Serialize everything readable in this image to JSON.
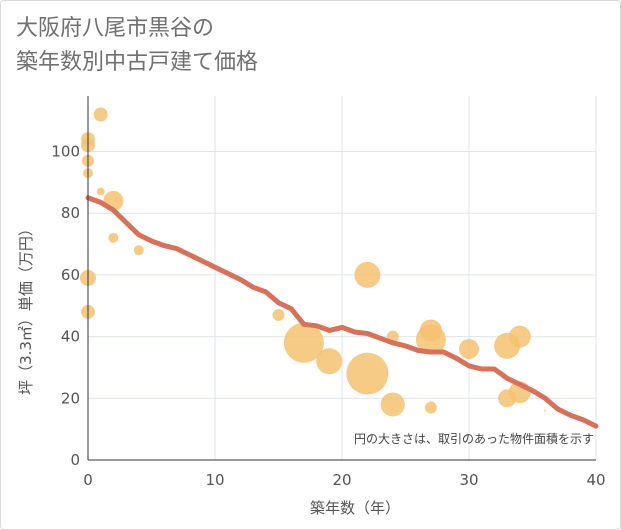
{
  "title_lines": [
    "大阪府八尾市黒谷の",
    "築年数別中古戸建て価格"
  ],
  "chart_data": {
    "type": "scatter",
    "title": "大阪府八尾市黒谷の築年数別中古戸建て価格",
    "xlabel": "築年数（年）",
    "ylabel": "坪（3.3㎡）単価（万円）",
    "xlim": [
      0,
      40
    ],
    "ylim": [
      0,
      118
    ],
    "xticks": [
      0,
      10,
      20,
      30,
      40
    ],
    "yticks": [
      0,
      20,
      40,
      60,
      80,
      100
    ],
    "grid": true,
    "note": "円の大きさは、取引のあった物件面積を示す",
    "colors": {
      "bubble": "#f5c270",
      "trend": "#d9705a",
      "grid": "#dfe4ea",
      "axis": "#333333"
    },
    "points": [
      {
        "x": 0,
        "y": 104,
        "size": 7
      },
      {
        "x": 0,
        "y": 102,
        "size": 7
      },
      {
        "x": 0,
        "y": 97,
        "size": 6
      },
      {
        "x": 0,
        "y": 93,
        "size": 5
      },
      {
        "x": 0,
        "y": 59,
        "size": 8
      },
      {
        "x": 0,
        "y": 48,
        "size": 7
      },
      {
        "x": 1,
        "y": 112,
        "size": 7
      },
      {
        "x": 1,
        "y": 87,
        "size": 4
      },
      {
        "x": 2,
        "y": 84,
        "size": 10
      },
      {
        "x": 2,
        "y": 72,
        "size": 5
      },
      {
        "x": 4,
        "y": 68,
        "size": 5
      },
      {
        "x": 15,
        "y": 47,
        "size": 6
      },
      {
        "x": 17,
        "y": 38,
        "size": 20
      },
      {
        "x": 19,
        "y": 32,
        "size": 13
      },
      {
        "x": 22,
        "y": 60,
        "size": 13
      },
      {
        "x": 22,
        "y": 28,
        "size": 21
      },
      {
        "x": 24,
        "y": 40,
        "size": 6
      },
      {
        "x": 24,
        "y": 18,
        "size": 12
      },
      {
        "x": 27,
        "y": 42,
        "size": 11
      },
      {
        "x": 27,
        "y": 39,
        "size": 15
      },
      {
        "x": 27,
        "y": 17,
        "size": 6
      },
      {
        "x": 30,
        "y": 36,
        "size": 10
      },
      {
        "x": 33,
        "y": 37,
        "size": 13
      },
      {
        "x": 33,
        "y": 20,
        "size": 9
      },
      {
        "x": 34,
        "y": 40,
        "size": 11
      },
      {
        "x": 34,
        "y": 22,
        "size": 11
      },
      {
        "x": 36,
        "y": 16,
        "size": 1
      }
    ],
    "trend": [
      [
        0,
        85
      ],
      [
        1,
        83.5
      ],
      [
        2,
        81
      ],
      [
        3,
        77
      ],
      [
        4,
        73
      ],
      [
        5,
        71
      ],
      [
        6,
        69.5
      ],
      [
        7,
        68.5
      ],
      [
        8,
        66.5
      ],
      [
        9,
        64.5
      ],
      [
        10,
        62.5
      ],
      [
        11,
        60.5
      ],
      [
        12,
        58.5
      ],
      [
        13,
        56
      ],
      [
        14,
        54.5
      ],
      [
        15,
        51
      ],
      [
        16,
        49
      ],
      [
        17,
        44
      ],
      [
        18,
        43.5
      ],
      [
        19,
        42
      ],
      [
        20,
        43
      ],
      [
        21,
        41.5
      ],
      [
        22,
        41
      ],
      [
        23,
        39.5
      ],
      [
        24,
        38
      ],
      [
        25,
        37
      ],
      [
        26,
        35.5
      ],
      [
        27,
        35
      ],
      [
        28,
        35
      ],
      [
        29,
        33
      ],
      [
        30,
        30.5
      ],
      [
        31,
        29.5
      ],
      [
        32,
        29.5
      ],
      [
        33,
        26.5
      ],
      [
        34,
        24.5
      ],
      [
        35,
        22.5
      ],
      [
        36,
        20
      ],
      [
        37,
        16.5
      ],
      [
        38,
        14.5
      ],
      [
        39,
        13
      ],
      [
        40,
        11
      ]
    ]
  }
}
